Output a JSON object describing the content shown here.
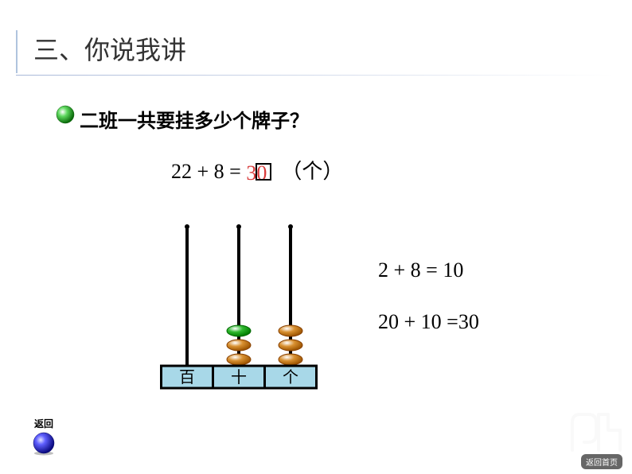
{
  "title": "三、你说我讲",
  "question": "二班一共要挂多少个牌子？",
  "main_equation": {
    "left": "22 + 8 = ",
    "answer": "30",
    "answer_color": "#d83a3a",
    "unit": "（个）"
  },
  "working": {
    "line1": "2 + 8 = 10",
    "line2": "20 + 10 =30"
  },
  "abacus": {
    "labels": [
      "百",
      "十",
      "个"
    ],
    "label_bg": "#a8d8e8",
    "rod_color": "#000000",
    "base_color": "#000000",
    "rods": [
      {
        "beads": []
      },
      {
        "beads": [
          {
            "color": "#2eb82e",
            "type": "top"
          },
          {
            "color": "#d89030",
            "type": "bottom"
          },
          {
            "color": "#d89030",
            "type": "bottom"
          }
        ]
      },
      {
        "beads": [
          {
            "color": "#d89030",
            "type": "bottom"
          },
          {
            "color": "#d89030",
            "type": "bottom"
          },
          {
            "color": "#d89030",
            "type": "bottom"
          }
        ]
      }
    ],
    "bead_width": 30,
    "bead_height": 14
  },
  "back_button": {
    "label": "返回",
    "color": "#2020c0"
  },
  "home_button": "返回首页",
  "bullet": {
    "color": "#2eb82e"
  },
  "colors": {
    "title_color": "#333333",
    "text_color": "#000000",
    "bg": "#ffffff"
  }
}
